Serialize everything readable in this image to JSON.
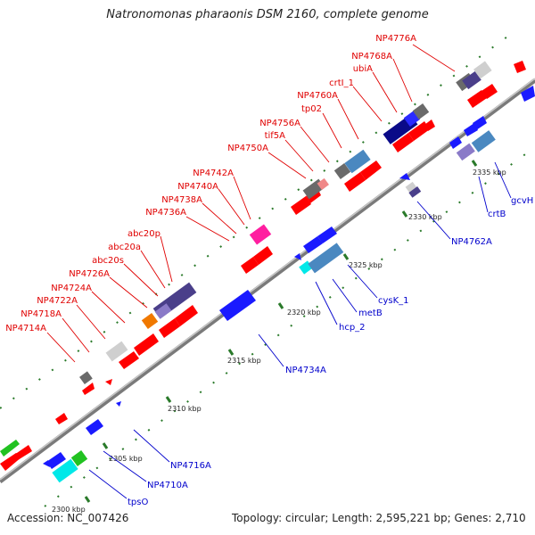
{
  "title": "Natronomonas pharaonis DSM 2160, complete genome",
  "footer": {
    "accession": "Accession: NC_007426",
    "topology": "Topology: circular; Length: 2,595,221 bp; Genes: 2,710"
  },
  "colors": {
    "backbone": "#8a8a8a",
    "forward_gene": "#ff0000",
    "reverse_gene": "#1a1aff",
    "tick": "#2a7a2a",
    "red_label": "#e00000",
    "blue_label": "#0000cc"
  },
  "scale_labels": [
    "2300 kbp",
    "2305 kbp",
    "2310 kbp",
    "2315 kbp",
    "2320 kbp",
    "2325 kbp",
    "2330 kbp",
    "2335 kbp"
  ],
  "red_labels": [
    "NP4714A",
    "NP4718A",
    "NP4722A",
    "NP4724A",
    "NP4726A",
    "abc20s",
    "abc20a",
    "abc20p",
    "NP4736A",
    "NP4738A",
    "NP4740A",
    "NP4742A",
    "NP4750A",
    "tif5A",
    "NP4756A",
    "tp02",
    "NP4760A",
    "crtI_1",
    "ubiA",
    "NP4768A",
    "NP4776A"
  ],
  "blue_labels": [
    "tpsO",
    "NP4710A",
    "NP4716A",
    "NP4734A",
    "hcp_2",
    "metB",
    "cysK_1",
    "NP4762A",
    "crtB",
    "gcvH"
  ]
}
